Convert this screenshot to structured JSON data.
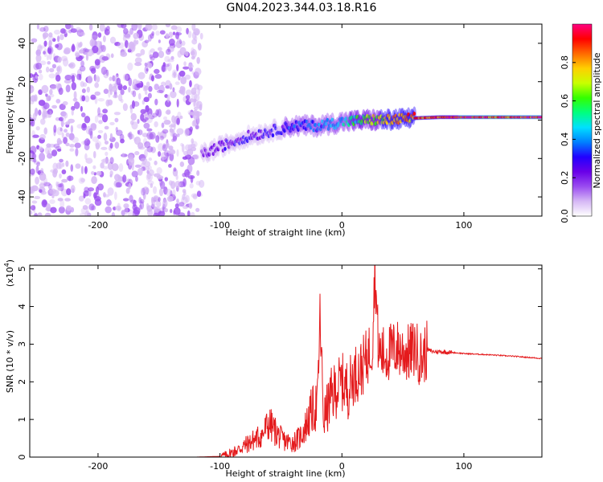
{
  "title": "GN04.2023.344.03.18.R16",
  "colors": {
    "snr_line": "#e41a1c",
    "axis": "#000000",
    "palette": [
      "#ffffff",
      "#d6b8f5",
      "#9a4cf0",
      "#6a00e8",
      "#2200ff",
      "#0080ff",
      "#00e0ff",
      "#00ff80",
      "#33ff00",
      "#c8ff00",
      "#ffd000",
      "#ff6a00",
      "#ff0000",
      "#ff0080"
    ]
  },
  "chart_data": [
    {
      "type": "heatmap",
      "xlabel": "Height of straight line (km)",
      "ylabel": "Frequency (Hz)",
      "xlim": [
        -256,
        164
      ],
      "ylim": [
        -50,
        50
      ],
      "x_ticks": [
        "-200",
        "-100",
        "0",
        "100"
      ],
      "y_ticks": [
        "-40",
        "-20",
        "0",
        "20",
        "40"
      ],
      "colorbar": {
        "label": "Normalized spectral amplitude",
        "range": [
          0,
          1
        ],
        "ticks": [
          "0.0",
          "0.2",
          "0.4",
          "0.6",
          "0.8"
        ]
      },
      "ridge": {
        "x": [
          -115,
          -100,
          -80,
          -60,
          -40,
          -20,
          0,
          20,
          40,
          60,
          80,
          100,
          120,
          164
        ],
        "y": [
          -18,
          -14,
          -9,
          -6,
          -3,
          -3,
          -1,
          0,
          0,
          1,
          1.5,
          1.5,
          1.5,
          1.5
        ],
        "amplitude": [
          0.2,
          0.25,
          0.3,
          0.3,
          0.35,
          0.4,
          0.5,
          0.65,
          0.85,
          0.9,
          0.95,
          1.0,
          1.0,
          1.0
        ]
      },
      "noise_region": {
        "x": [
          -256,
          -115
        ],
        "y": [
          -50,
          50
        ],
        "amplitude_max": 0.12
      }
    },
    {
      "type": "line",
      "xlabel": "Height of straight line (km)",
      "ylabel": "SNR (10 * v/v)",
      "y_multiplier": "(x10",
      "y_multiplier_exp": "4",
      "xlim": [
        -256,
        164
      ],
      "ylim": [
        0,
        5.1
      ],
      "x_ticks": [
        "-200",
        "-100",
        "0",
        "100"
      ],
      "y_ticks": [
        "0",
        "1",
        "2",
        "3",
        "4",
        "5"
      ],
      "series": [
        {
          "x": [
            -256,
            -200,
            -120,
            -100,
            -95,
            -85,
            -75,
            -65,
            -60,
            -55,
            -50,
            -45,
            -40,
            -35,
            -30,
            -25,
            -20,
            -18,
            -15,
            -10,
            -5,
            0,
            5,
            10,
            15,
            20,
            25,
            27,
            30,
            35,
            40,
            45,
            50,
            55,
            60,
            65,
            70,
            75,
            80,
            90,
            100,
            120,
            140,
            164
          ],
          "y": [
            0,
            0,
            0,
            0.02,
            0.05,
            0.2,
            0.4,
            0.6,
            0.9,
            0.7,
            0.5,
            0.4,
            0.4,
            0.5,
            0.8,
            1.2,
            1.4,
            3.7,
            1.0,
            1.5,
            1.8,
            2.0,
            1.8,
            2.2,
            2.3,
            2.6,
            3.0,
            5.1,
            2.8,
            2.7,
            2.8,
            2.9,
            2.8,
            2.75,
            2.9,
            2.6,
            2.85,
            2.8,
            2.8,
            2.78,
            2.75,
            2.72,
            2.68,
            2.62
          ]
        }
      ]
    }
  ]
}
